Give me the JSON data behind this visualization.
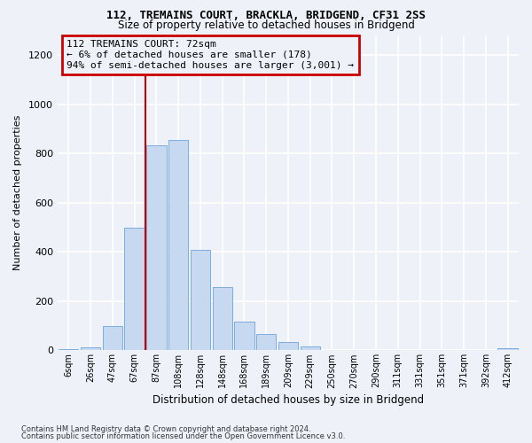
{
  "title1": "112, TREMAINS COURT, BRACKLA, BRIDGEND, CF31 2SS",
  "title2": "Size of property relative to detached houses in Bridgend",
  "xlabel": "Distribution of detached houses by size in Bridgend",
  "ylabel": "Number of detached properties",
  "bar_labels": [
    "6sqm",
    "26sqm",
    "47sqm",
    "67sqm",
    "87sqm",
    "108sqm",
    "128sqm",
    "148sqm",
    "168sqm",
    "189sqm",
    "209sqm",
    "229sqm",
    "250sqm",
    "270sqm",
    "290sqm",
    "311sqm",
    "331sqm",
    "351sqm",
    "371sqm",
    "392sqm",
    "412sqm"
  ],
  "bar_values": [
    5,
    12,
    98,
    500,
    835,
    855,
    408,
    258,
    118,
    68,
    35,
    15,
    3,
    1,
    0,
    0,
    0,
    0,
    0,
    0,
    8
  ],
  "bar_color": "#c6d9f0",
  "bar_edgecolor": "#7aadde",
  "vline_x": 3.5,
  "vline_color": "#cc0000",
  "annotation_title": "112 TREMAINS COURT: 72sqm",
  "annotation_line1": "← 6% of detached houses are smaller (178)",
  "annotation_line2": "94% of semi-detached houses are larger (3,001) →",
  "annotation_box_edgecolor": "#cc0000",
  "ylim": [
    0,
    1280
  ],
  "yticks": [
    0,
    200,
    400,
    600,
    800,
    1000,
    1200
  ],
  "footnote1": "Contains HM Land Registry data © Crown copyright and database right 2024.",
  "footnote2": "Contains public sector information licensed under the Open Government Licence v3.0.",
  "background_color": "#eef2f8"
}
